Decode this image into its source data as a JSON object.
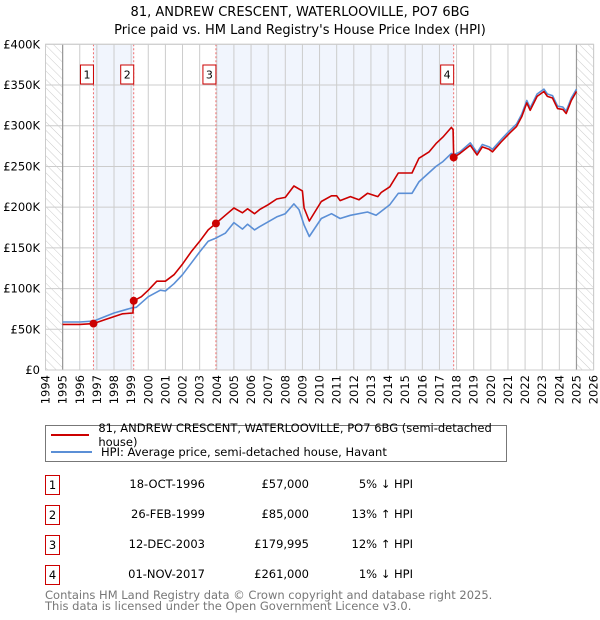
{
  "chart_data": {
    "type": "line",
    "title": "81, ANDREW CRESCENT, WATERLOOVILLE, PO7 6BG",
    "subtitle": "Price paid vs. HM Land Registry's House Price Index (HPI)",
    "xlim": [
      1994,
      2026
    ],
    "ylim": [
      0,
      400000
    ],
    "x_ticks": [
      "1994",
      "1995",
      "1996",
      "1997",
      "1998",
      "1999",
      "2000",
      "2001",
      "2002",
      "2003",
      "2004",
      "2005",
      "2006",
      "2007",
      "2008",
      "2009",
      "2010",
      "2011",
      "2012",
      "2013",
      "2014",
      "2015",
      "2016",
      "2017",
      "2018",
      "2019",
      "2020",
      "2021",
      "2022",
      "2023",
      "2024",
      "2025",
      "2026"
    ],
    "y_ticks": [
      {
        "v": 0,
        "label": "£0"
      },
      {
        "v": 50000,
        "label": "£50K"
      },
      {
        "v": 100000,
        "label": "£100K"
      },
      {
        "v": 150000,
        "label": "£150K"
      },
      {
        "v": 200000,
        "label": "£200K"
      },
      {
        "v": 250000,
        "label": "£250K"
      },
      {
        "v": 300000,
        "label": "£300K"
      },
      {
        "v": 350000,
        "label": "£350K"
      },
      {
        "v": 400000,
        "label": "£400K"
      }
    ],
    "grid": true,
    "data_range": [
      1995,
      2025
    ],
    "series": [
      {
        "name": "81, ANDREW CRESCENT, WATERLOOVILLE, PO7 6BG (semi-detached house)",
        "color": "#cc0000",
        "x": [
          1995,
          1996,
          1996.8,
          1997.5,
          1998.5,
          1999.1,
          1999.15,
          1999.6,
          2000,
          2000.5,
          2001,
          2001.5,
          2002,
          2002.5,
          2003,
          2003.5,
          2003.95,
          2004.5,
          2005,
          2005.5,
          2005.8,
          2006.2,
          2006.5,
          2007,
          2007.5,
          2008,
          2008.5,
          2009,
          2009.1,
          2009.4,
          2010.1,
          2010.7,
          2011,
          2011.2,
          2011.8,
          2012.3,
          2012.8,
          2013.4,
          2013.6,
          2014.1,
          2014.6,
          2015.4,
          2015.8,
          2016.4,
          2016.8,
          2017.2,
          2017.7,
          2017.8,
          2017.83,
          2018.2,
          2018.8,
          2019.2,
          2019.5,
          2019.9,
          2020.1,
          2020.6,
          2021.1,
          2021.5,
          2021.8,
          2022.1,
          2022.3,
          2022.7,
          2023.1,
          2023.3,
          2023.6,
          2023.9,
          2024.2,
          2024.4,
          2024.7,
          2025
        ],
        "y": [
          56000,
          56000,
          57000,
          62000,
          69000,
          70000,
          85000,
          90000,
          98000,
          109000,
          109000,
          117000,
          130000,
          145000,
          158000,
          172000,
          180000,
          190000,
          199000,
          193000,
          198000,
          192000,
          197000,
          203000,
          210000,
          212000,
          226000,
          220000,
          199000,
          183000,
          207000,
          214000,
          214000,
          208000,
          213000,
          209000,
          217000,
          213000,
          218000,
          225000,
          242000,
          242000,
          260000,
          268000,
          278000,
          286000,
          298000,
          295000,
          261000,
          266000,
          276000,
          264000,
          274000,
          271000,
          268000,
          280000,
          291000,
          299000,
          311000,
          328000,
          319000,
          336000,
          342000,
          336000,
          334000,
          321000,
          320000,
          315000,
          331000,
          342000
        ]
      },
      {
        "name": "HPI: Average price, semi-detached house, Havant",
        "color": "#5b8fd6",
        "x": [
          1995,
          1996,
          1996.8,
          1998,
          1999,
          1999.3,
          2000,
          2000.7,
          2001,
          2001.5,
          2002,
          2002.5,
          2003,
          2003.5,
          2003.95,
          2004.5,
          2005,
          2005.5,
          2005.8,
          2006.2,
          2006.5,
          2007,
          2007.5,
          2008,
          2008.5,
          2008.8,
          2009.1,
          2009.4,
          2010.1,
          2010.7,
          2011.2,
          2011.8,
          2012.8,
          2013.3,
          2014.1,
          2014.6,
          2015.4,
          2015.8,
          2016.8,
          2017.2,
          2017.7,
          2017.83,
          2018.2,
          2018.8,
          2019.2,
          2019.5,
          2019.9,
          2020.1,
          2020.6,
          2021.1,
          2021.5,
          2021.8,
          2022.1,
          2022.3,
          2022.7,
          2023.1,
          2023.3,
          2023.6,
          2023.9,
          2024.2,
          2024.4,
          2024.7,
          2025
        ],
        "y": [
          59000,
          59000,
          60000,
          70000,
          76000,
          77000,
          90000,
          98000,
          97000,
          106000,
          117000,
          131000,
          145000,
          158000,
          162000,
          168000,
          181000,
          173000,
          179000,
          172000,
          176000,
          182000,
          188000,
          192000,
          204000,
          197000,
          178000,
          164000,
          186000,
          192000,
          186000,
          190000,
          194000,
          190000,
          203000,
          217000,
          217000,
          231000,
          250000,
          256000,
          266000,
          264000,
          268000,
          279000,
          267000,
          277000,
          274000,
          271000,
          283000,
          294000,
          302000,
          314000,
          331000,
          322000,
          339000,
          345000,
          339000,
          337000,
          324000,
          323000,
          318000,
          334000,
          345000
        ]
      }
    ],
    "sales": [
      {
        "n": "1",
        "x": 1996.8,
        "y": 57000,
        "date": "18-OCT-1996",
        "price": "£57,000",
        "hpi": "5% ↓ HPI"
      },
      {
        "n": "2",
        "x": 1999.15,
        "y": 85000,
        "date": "26-FEB-1999",
        "price": "£85,000",
        "hpi": "13% ↑ HPI"
      },
      {
        "n": "3",
        "x": 2003.95,
        "y": 179995,
        "date": "12-DEC-2003",
        "price": "£179,995",
        "hpi": "12% ↑ HPI"
      },
      {
        "n": "4",
        "x": 2017.83,
        "y": 261000,
        "date": "01-NOV-2017",
        "price": "£261,000",
        "hpi": "1% ↓ HPI"
      }
    ],
    "legend_placement": "below"
  },
  "footer": {
    "line1": "Contains HM Land Registry data © Crown copyright and database right 2025.",
    "line2": "This data is licensed under the Open Government Licence v3.0."
  }
}
